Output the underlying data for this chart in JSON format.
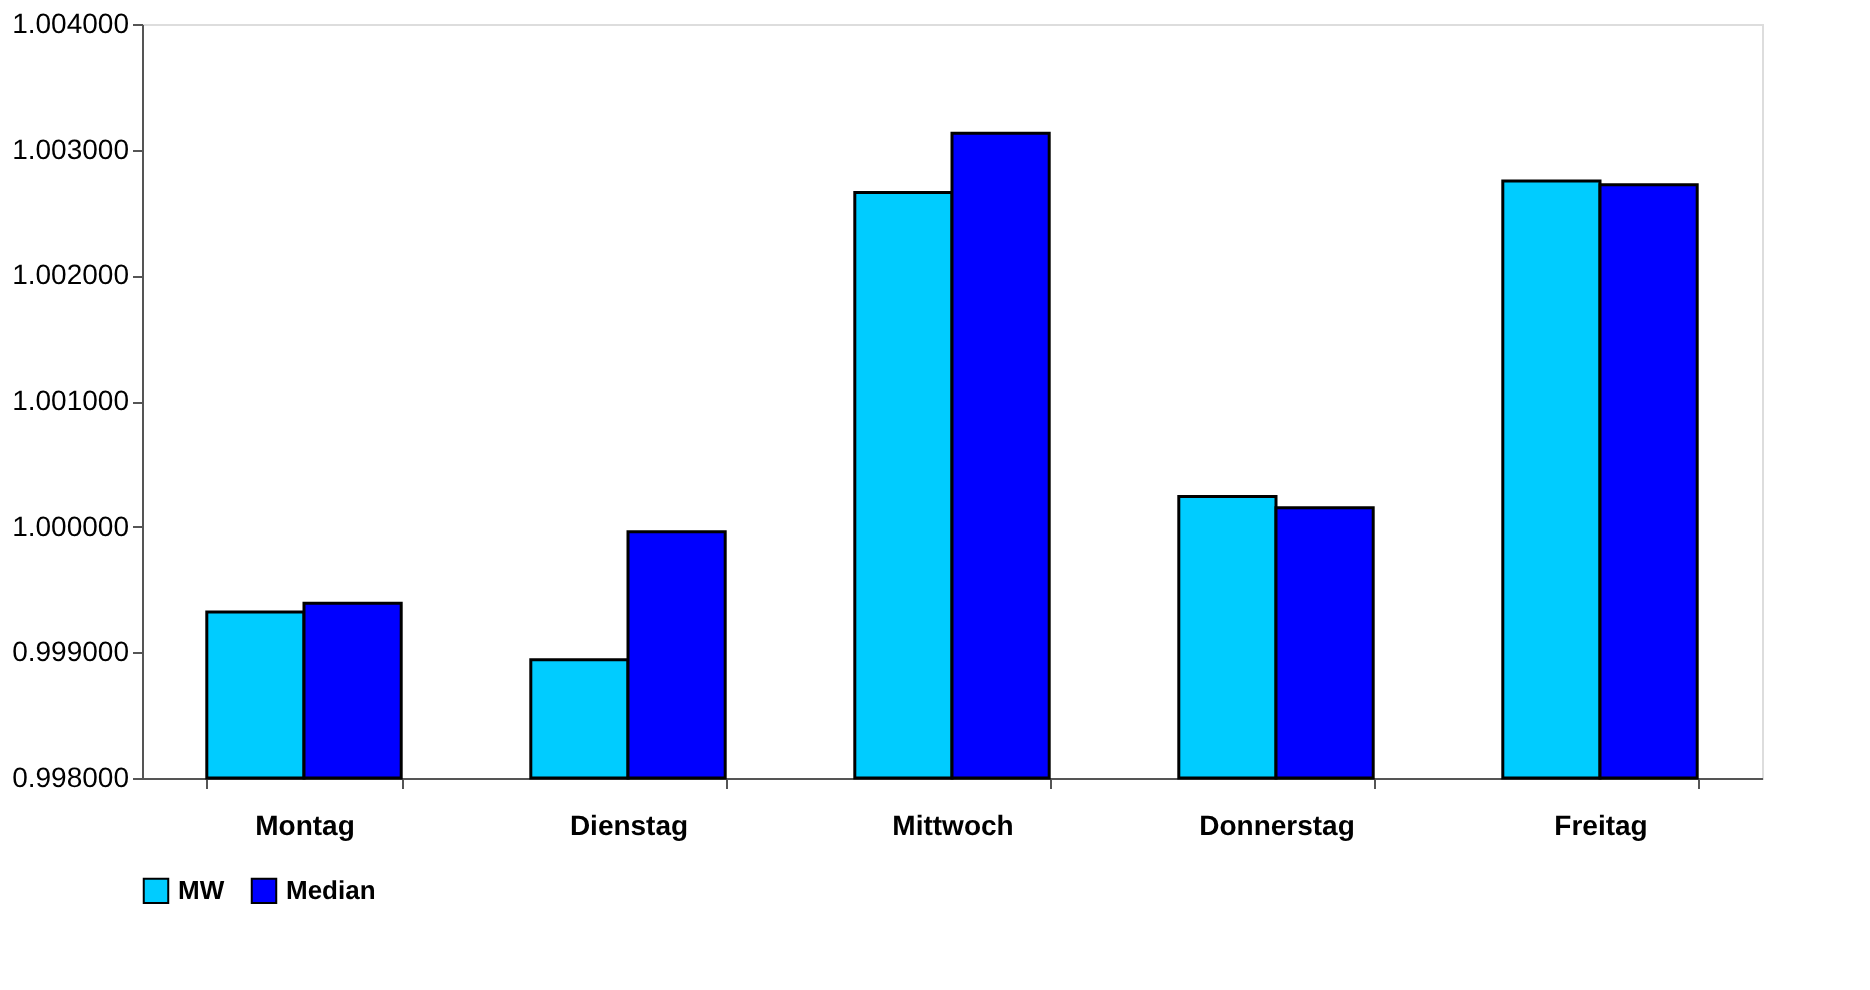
{
  "chart_data": {
    "type": "bar",
    "categories": [
      "Montag",
      "Dienstag",
      "Mittwoch",
      "Donnerstag",
      "Freitag"
    ],
    "series": [
      {
        "name": "MW",
        "color": "#00ccff",
        "values": [
          0.99932,
          0.99894,
          1.00266,
          1.00024,
          1.00275
        ]
      },
      {
        "name": "Median",
        "color": "#0000ff",
        "values": [
          0.99939,
          0.99996,
          1.00313,
          1.00015,
          1.00272
        ]
      }
    ],
    "ylim": [
      0.998,
      1.004
    ],
    "yticks": [
      {
        "value": 0.998,
        "label": "0.998000"
      },
      {
        "value": 0.999,
        "label": "0.999000"
      },
      {
        "value": 1.0,
        "label": "1.000000"
      },
      {
        "value": 1.001,
        "label": "1.001000"
      },
      {
        "value": 1.002,
        "label": "1.002000"
      },
      {
        "value": 1.003,
        "label": "1.003000"
      },
      {
        "value": 1.004,
        "label": "1.004000"
      }
    ],
    "grid": false,
    "legend": "bottom"
  }
}
